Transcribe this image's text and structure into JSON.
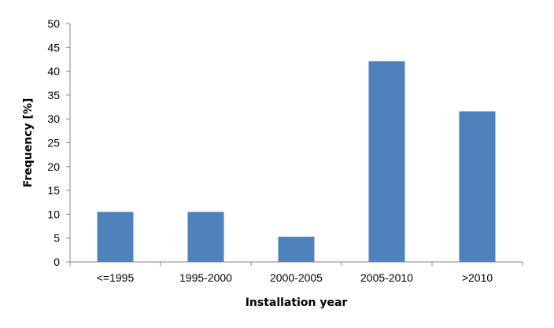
{
  "chart_data": {
    "type": "bar",
    "categories": [
      "<=1995",
      "1995-2000",
      "2000-2005",
      "2005-2010",
      ">2010"
    ],
    "values": [
      10.5,
      10.5,
      5.3,
      42.1,
      31.6
    ],
    "xlabel": "Installation year",
    "ylabel": "Frequency [%]",
    "ylim": [
      0,
      50
    ],
    "yticks": [
      0,
      5,
      10,
      15,
      20,
      25,
      30,
      35,
      40,
      45,
      50
    ],
    "grid": false,
    "legend": "none",
    "bar_color": "#4f81bd"
  }
}
